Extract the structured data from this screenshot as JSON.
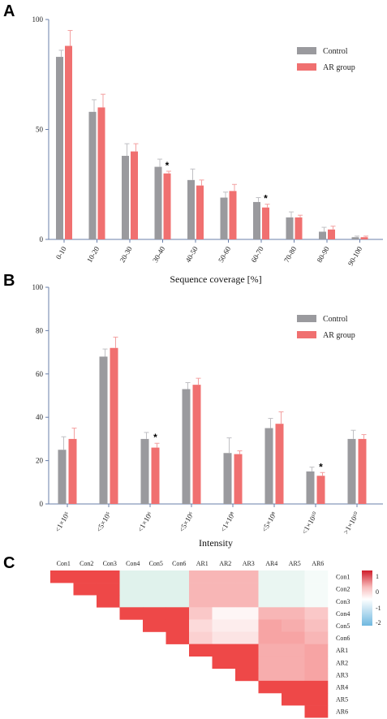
{
  "panels": {
    "a": {
      "letter": "A"
    },
    "b": {
      "letter": "B"
    },
    "c": {
      "letter": "C"
    }
  },
  "colors": {
    "control": "#9a9a9e",
    "ar": "#f07070",
    "error": "#c0c0c4",
    "axis": "#6a7faa"
  },
  "chart_data": [
    {
      "type": "bar",
      "panel": "A",
      "title": "",
      "xlabel": "Sequence coverage [%]",
      "ylabel": "",
      "ylim": [
        0,
        100
      ],
      "yticks": [
        0,
        50,
        100
      ],
      "categories": [
        "0-10",
        "10-20",
        "20-30",
        "30-40",
        "40-50",
        "50-60",
        "60-70",
        "70-80",
        "80-90",
        "90-100"
      ],
      "series": [
        {
          "name": "Control",
          "values": [
            83,
            58,
            38,
            33,
            27,
            19,
            17,
            10,
            3.5,
            1
          ],
          "errors": [
            3,
            5.5,
            5.5,
            3.5,
            5,
            2.5,
            2,
            2.5,
            2,
            0.5
          ]
        },
        {
          "name": "AR group",
          "values": [
            88,
            60,
            40,
            30,
            24.5,
            22,
            14.5,
            10,
            4.5,
            1
          ],
          "errors": [
            7,
            6,
            3.5,
            1,
            2.5,
            3,
            1.5,
            1,
            1.5,
            0.5
          ]
        }
      ],
      "significant": [
        "30-40",
        "60-70"
      ],
      "significance_mark": "*",
      "legend": {
        "placement": "top-right"
      }
    },
    {
      "type": "bar",
      "panel": "B",
      "title": "",
      "xlabel": "Intensity",
      "ylabel": "",
      "ylim": [
        0,
        100
      ],
      "yticks": [
        0,
        20,
        40,
        60,
        80,
        100
      ],
      "categories": [
        "<1×10⁵",
        "<5×10⁵",
        "<1×10⁶",
        "<5×10⁶",
        "<1×10⁸",
        "<5×10⁸",
        "<1×10¹⁰",
        ">1×10¹⁰"
      ],
      "series": [
        {
          "name": "Control",
          "values": [
            25,
            68,
            30,
            53,
            23.5,
            35,
            15,
            30
          ],
          "errors": [
            6,
            3.5,
            3,
            3,
            7,
            4.5,
            2,
            4
          ]
        },
        {
          "name": "AR group",
          "values": [
            30,
            72,
            26,
            55,
            23,
            37,
            13,
            30
          ],
          "errors": [
            5,
            5,
            2,
            3,
            1.5,
            5.5,
            1.5,
            2
          ]
        }
      ],
      "significant": [
        "<1×10⁶",
        "<1×10¹⁰"
      ],
      "significance_mark": "*",
      "legend": {
        "placement": "top-right"
      }
    },
    {
      "type": "heatmap",
      "panel": "C",
      "title": "",
      "labels": [
        "Con1",
        "Con2",
        "Con3",
        "Con4",
        "Con5",
        "Con6",
        "AR1",
        "AR2",
        "AR3",
        "AR4",
        "AR5",
        "AR6"
      ],
      "layout": "upper-triangle",
      "values": [
        [
          1,
          1,
          1,
          -0.3,
          -0.3,
          -0.3,
          0.4,
          0.4,
          0.4,
          -0.2,
          -0.2,
          -0.1
        ],
        [
          1,
          1,
          1,
          -0.3,
          -0.3,
          -0.3,
          0.4,
          0.4,
          0.4,
          -0.2,
          -0.2,
          -0.1
        ],
        [
          1,
          1,
          1,
          -0.3,
          -0.3,
          -0.3,
          0.4,
          0.4,
          0.4,
          -0.2,
          -0.2,
          -0.1
        ],
        [
          -0.3,
          -0.3,
          -0.3,
          1,
          1,
          1,
          0.3,
          0.05,
          0.05,
          0.4,
          0.4,
          0.3
        ],
        [
          -0.3,
          -0.3,
          -0.3,
          1,
          1,
          1,
          0.2,
          0.1,
          0.1,
          0.5,
          0.45,
          0.35
        ],
        [
          -0.3,
          -0.3,
          -0.3,
          1,
          1,
          1,
          0.25,
          0.15,
          0.15,
          0.5,
          0.5,
          0.4
        ],
        [
          0.4,
          0.4,
          0.4,
          0.3,
          0.2,
          0.25,
          1,
          1,
          1,
          0.45,
          0.45,
          0.5
        ],
        [
          0.4,
          0.4,
          0.4,
          0.05,
          0.1,
          0.15,
          1,
          1,
          1,
          0.45,
          0.45,
          0.5
        ],
        [
          0.4,
          0.4,
          0.4,
          0.05,
          0.1,
          0.15,
          1,
          1,
          1,
          0.45,
          0.45,
          0.5
        ],
        [
          -0.2,
          -0.2,
          -0.2,
          0.4,
          0.5,
          0.5,
          0.45,
          0.45,
          0.45,
          1,
          1,
          1
        ],
        [
          -0.2,
          -0.2,
          -0.2,
          0.4,
          0.45,
          0.5,
          0.45,
          0.45,
          0.45,
          1,
          1,
          1
        ],
        [
          -0.1,
          -0.1,
          -0.1,
          0.3,
          0.35,
          0.4,
          0.5,
          0.5,
          0.5,
          1,
          1,
          1
        ]
      ],
      "colorbar": {
        "ticks": [
          "1",
          "0",
          "-1",
          "-2"
        ]
      }
    }
  ]
}
